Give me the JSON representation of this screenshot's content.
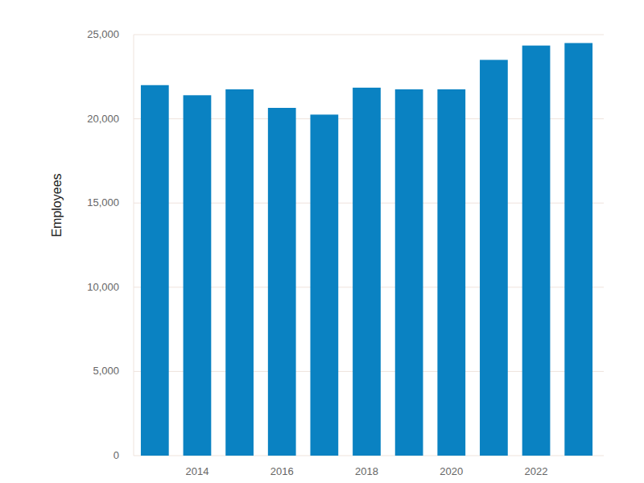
{
  "chart_data": {
    "type": "bar",
    "y_label": "Employees",
    "categories": [
      null,
      "2014",
      null,
      "2016",
      null,
      "2018",
      null,
      "2020",
      null,
      "2022",
      null
    ],
    "values": [
      22000,
      21400,
      21750,
      20650,
      20250,
      21850,
      21750,
      21750,
      23500,
      24350,
      24500
    ],
    "color": "#0a82c2",
    "ylim": [
      0,
      25000
    ],
    "yticks": [
      0,
      {
        "value": 5000,
        "label": "5,000"
      },
      {
        "value": 10000,
        "label": "10,000"
      },
      {
        "value": 15000,
        "label": "15,000"
      },
      {
        "value": 20000,
        "label": "20,000"
      },
      {
        "value": 25000,
        "label": "25,000"
      }
    ],
    "grid": true
  }
}
